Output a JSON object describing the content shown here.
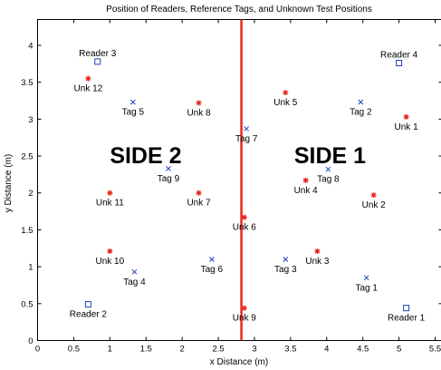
{
  "chart_data": {
    "type": "scatter",
    "title": "Position of Readers, Reference Tags, and Unknown Test Positions",
    "xlabel": "x Distance (m)",
    "ylabel": "y Distance (m)",
    "xlim": [
      0,
      5.6
    ],
    "ylim": [
      0,
      4.35
    ],
    "xticks": [
      0,
      0.5,
      1,
      1.5,
      2,
      2.5,
      3,
      3.5,
      4,
      4.5,
      5,
      5.5
    ],
    "yticks": [
      0,
      0.5,
      1,
      1.5,
      2,
      2.5,
      3,
      3.5,
      4
    ],
    "xtick_labels": [
      "0",
      "0.5",
      "1",
      "1.5",
      "2",
      "2.5",
      "3",
      "3.5",
      "4",
      "4.5",
      "5",
      "5.5"
    ],
    "ytick_labels": [
      "0",
      "0.5",
      "1",
      "1.5",
      "2",
      "2.5",
      "3",
      "3.5",
      "4"
    ],
    "grid": false,
    "divider": {
      "x": 2.82,
      "color": "#e8281e"
    },
    "side_labels": [
      {
        "text": "SIDE 2",
        "x": 1.0,
        "y": 2.4
      },
      {
        "text": "SIDE 1",
        "x": 3.55,
        "y": 2.4
      }
    ],
    "series": [
      {
        "marker": "square",
        "color": "#1f3fbf",
        "points": [
          {
            "label": "Reader 1",
            "x": 5.1,
            "y": 0.44,
            "label_pos": "below"
          },
          {
            "label": "Reader 2",
            "x": 0.7,
            "y": 0.49,
            "label_pos": "below"
          },
          {
            "label": "Reader 3",
            "x": 0.83,
            "y": 3.78,
            "label_pos": "above"
          },
          {
            "label": "Reader 4",
            "x": 5.0,
            "y": 3.76,
            "label_pos": "above"
          }
        ]
      },
      {
        "marker": "x",
        "color": "#1f3fbf",
        "points": [
          {
            "label": "Tag 1",
            "x": 4.55,
            "y": 0.85,
            "label_pos": "below"
          },
          {
            "label": "Tag 2",
            "x": 4.47,
            "y": 3.23,
            "label_pos": "below"
          },
          {
            "label": "Tag 3",
            "x": 3.43,
            "y": 1.1,
            "label_pos": "below"
          },
          {
            "label": "Tag 4",
            "x": 1.34,
            "y": 0.93,
            "label_pos": "below"
          },
          {
            "label": "Tag 5",
            "x": 1.32,
            "y": 3.23,
            "label_pos": "below"
          },
          {
            "label": "Tag 6",
            "x": 2.41,
            "y": 1.1,
            "label_pos": "below"
          },
          {
            "label": "Tag 7",
            "x": 2.89,
            "y": 2.87,
            "label_pos": "below"
          },
          {
            "label": "Tag 8",
            "x": 4.02,
            "y": 2.32,
            "label_pos": "below"
          },
          {
            "label": "Tag 9",
            "x": 1.81,
            "y": 2.33,
            "label_pos": "below"
          }
        ]
      },
      {
        "marker": "star",
        "color": "#e8281e",
        "points": [
          {
            "label": "Unk 1",
            "x": 5.1,
            "y": 3.03,
            "label_pos": "below"
          },
          {
            "label": "Unk 2",
            "x": 4.65,
            "y": 1.97,
            "label_pos": "below"
          },
          {
            "label": "Unk 3",
            "x": 3.87,
            "y": 1.21,
            "label_pos": "below"
          },
          {
            "label": "Unk 4",
            "x": 3.71,
            "y": 2.17,
            "label_pos": "below"
          },
          {
            "label": "Unk 5",
            "x": 3.43,
            "y": 3.36,
            "label_pos": "below"
          },
          {
            "label": "Unk 6",
            "x": 2.86,
            "y": 1.67,
            "label_pos": "below"
          },
          {
            "label": "Unk 7",
            "x": 2.23,
            "y": 2.0,
            "label_pos": "below"
          },
          {
            "label": "Unk 8",
            "x": 2.23,
            "y": 3.22,
            "label_pos": "below"
          },
          {
            "label": "Unk 9",
            "x": 2.86,
            "y": 0.44,
            "label_pos": "below"
          },
          {
            "label": "Unk 10",
            "x": 1.0,
            "y": 1.21,
            "label_pos": "below"
          },
          {
            "label": "Unk 11",
            "x": 1.0,
            "y": 2.0,
            "label_pos": "below"
          },
          {
            "label": "Unk 12",
            "x": 0.7,
            "y": 3.55,
            "label_pos": "below"
          }
        ]
      }
    ]
  }
}
